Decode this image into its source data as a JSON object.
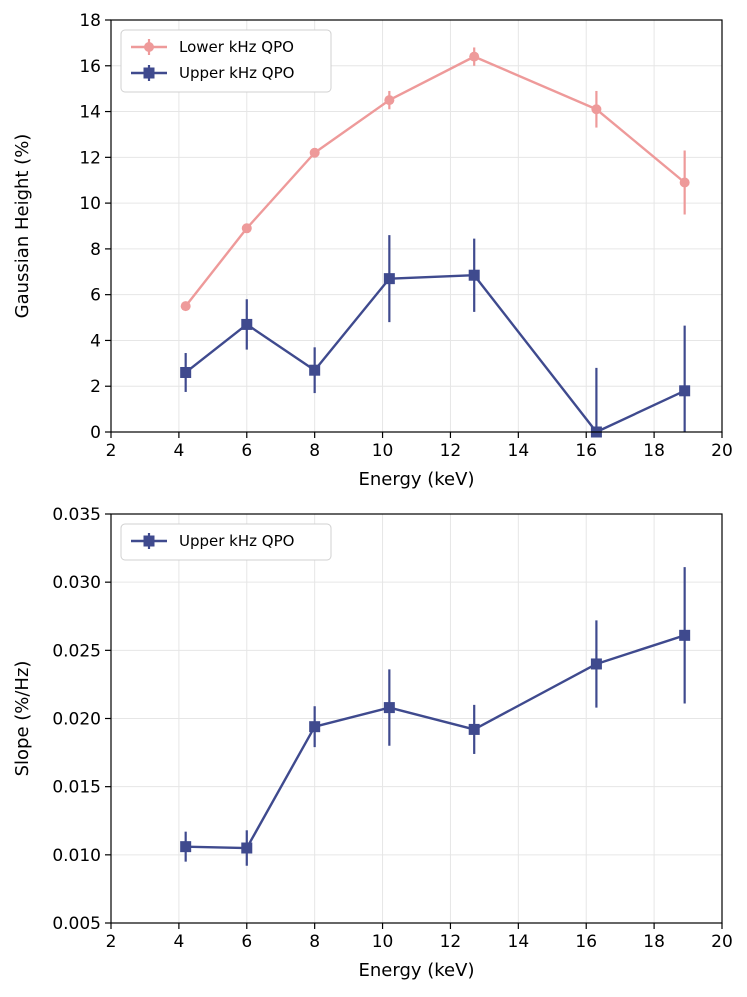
{
  "chart_data": [
    {
      "type": "line",
      "title": "",
      "xlabel": "Energy (keV)",
      "ylabel": "Gaussian Height (%)",
      "xlim": [
        2,
        20
      ],
      "ylim": [
        0,
        18
      ],
      "xticks": [
        2,
        4,
        6,
        8,
        10,
        12,
        14,
        16,
        18,
        20
      ],
      "yticks": [
        0,
        2,
        4,
        6,
        8,
        10,
        12,
        14,
        16,
        18
      ],
      "grid": true,
      "legend_position": "top-left",
      "series": [
        {
          "name": "Lower kHz QPO",
          "color": "#ee9a9a",
          "marker": "circle",
          "x": [
            4.2,
            6.0,
            8.0,
            10.2,
            12.7,
            16.3,
            18.9
          ],
          "y": [
            5.5,
            8.9,
            12.2,
            14.5,
            16.4,
            14.1,
            10.9
          ],
          "yerr": [
            0.1,
            0.1,
            0.15,
            0.4,
            0.4,
            0.8,
            1.4
          ]
        },
        {
          "name": "Upper kHz QPO",
          "color": "#3f4a8e",
          "marker": "square",
          "x": [
            4.2,
            6.0,
            8.0,
            10.2,
            12.7,
            16.3,
            18.9
          ],
          "y": [
            2.6,
            4.7,
            2.7,
            6.7,
            6.85,
            0.0,
            1.8
          ],
          "yerr": [
            0.85,
            1.1,
            1.0,
            1.9,
            1.6,
            2.8,
            2.85
          ]
        }
      ]
    },
    {
      "type": "line",
      "title": "",
      "xlabel": "Energy (keV)",
      "ylabel": "Slope (%/Hz)",
      "xlim": [
        2,
        20
      ],
      "ylim": [
        0.005,
        0.035
      ],
      "xticks": [
        2,
        4,
        6,
        8,
        10,
        12,
        14,
        16,
        18,
        20
      ],
      "yticks": [
        "0.005",
        "0.010",
        "0.015",
        "0.020",
        "0.025",
        "0.030",
        "0.035"
      ],
      "grid": true,
      "legend_position": "top-left",
      "series": [
        {
          "name": "Upper kHz QPO",
          "color": "#3f4a8e",
          "marker": "square",
          "x": [
            4.2,
            6.0,
            8.0,
            10.2,
            12.7,
            16.3,
            18.9
          ],
          "y": [
            0.0106,
            0.0105,
            0.0194,
            0.0208,
            0.0192,
            0.024,
            0.0261
          ],
          "yerr": [
            0.0011,
            0.0013,
            0.0015,
            0.0028,
            0.0018,
            0.0032,
            0.005
          ]
        }
      ]
    }
  ]
}
